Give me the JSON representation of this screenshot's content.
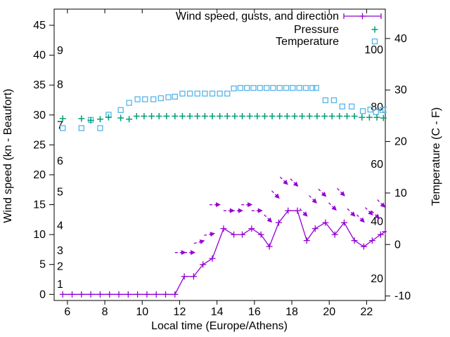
{
  "chart_data": {
    "type": "line",
    "xlabel": "Local time (Europe/Athens)",
    "ylabel_left": "Wind speed (kn - Beaufort)",
    "ylabel_right": "Temperature (C - F)",
    "x_range": [
      5.29,
      23.0
    ],
    "y_left_range_kn": [
      -1.02,
      47.7
    ],
    "y_right_range_c": [
      -10.87,
      45.7
    ],
    "x_ticks": [
      6,
      8,
      10,
      12,
      14,
      16,
      18,
      20,
      22
    ],
    "y_left_ticks_kn": [
      0,
      5,
      10,
      15,
      20,
      25,
      30,
      35,
      40,
      45
    ],
    "y_right_ticks_c": [
      -10,
      0,
      10,
      20,
      30,
      40
    ],
    "beaufort_labels": [
      [
        1,
        1.7
      ],
      [
        2,
        4.7
      ],
      [
        3,
        7.3
      ],
      [
        4,
        11.5
      ],
      [
        5,
        17.1
      ],
      [
        6,
        22.3
      ],
      [
        7,
        28.3
      ],
      [
        8,
        35.1
      ],
      [
        9,
        40.8
      ]
    ],
    "fahrenheit_labels": [
      20,
      40,
      60,
      80,
      100
    ],
    "grid": false,
    "legend_position": "top-right-inside",
    "legend": [
      {
        "label": "Wind speed, gusts, and direction",
        "marker": "errorbar-line",
        "color": "#9400d3"
      },
      {
        "label": "Pressure",
        "marker": "plus",
        "color": "#009e73"
      },
      {
        "label": "Temperature",
        "marker": "open-square",
        "color": "#56b4e9"
      }
    ],
    "series": {
      "wind_speed_kn": {
        "name": "Wind speed",
        "color": "#9400d3",
        "points": [
          [
            5.75,
            0
          ],
          [
            6.25,
            0
          ],
          [
            6.75,
            0
          ],
          [
            7.25,
            0
          ],
          [
            7.75,
            0
          ],
          [
            8.25,
            0
          ],
          [
            8.75,
            0
          ],
          [
            9.25,
            0
          ],
          [
            9.75,
            0
          ],
          [
            10.25,
            0
          ],
          [
            10.75,
            0
          ],
          [
            11.25,
            0
          ],
          [
            11.75,
            0
          ],
          [
            12.25,
            3
          ],
          [
            12.75,
            3
          ],
          [
            13.25,
            5
          ],
          [
            13.75,
            6
          ],
          [
            14.35,
            11
          ],
          [
            14.9,
            10
          ],
          [
            15.35,
            10
          ],
          [
            15.85,
            11
          ],
          [
            16.35,
            10
          ],
          [
            16.8,
            8
          ],
          [
            17.3,
            12
          ],
          [
            17.8,
            14
          ],
          [
            18.3,
            14
          ],
          [
            18.8,
            9
          ],
          [
            19.25,
            11
          ],
          [
            19.8,
            12
          ],
          [
            20.3,
            10
          ],
          [
            20.8,
            12
          ],
          [
            21.35,
            9
          ],
          [
            21.85,
            8
          ],
          [
            22.3,
            9
          ],
          [
            22.75,
            10
          ],
          [
            23.0,
            10.5
          ]
        ]
      },
      "gusts_kn_with_direction_deg": {
        "name": "Gusts and direction",
        "color": "#9400d3",
        "points": [
          [
            12.35,
            7,
            0
          ],
          [
            12.85,
            7,
            0
          ],
          [
            13.35,
            9,
            -15
          ],
          [
            13.9,
            10.2,
            -10
          ],
          [
            14.2,
            15,
            0
          ],
          [
            14.95,
            14,
            0
          ],
          [
            15.4,
            14,
            0
          ],
          [
            15.9,
            15,
            0
          ],
          [
            16.45,
            14,
            0
          ],
          [
            16.95,
            12,
            45
          ],
          [
            17.35,
            16,
            45
          ],
          [
            17.8,
            18.3,
            45
          ],
          [
            18.35,
            18,
            45
          ],
          [
            18.85,
            13,
            45
          ],
          [
            19.35,
            15.2,
            45
          ],
          [
            19.85,
            16.3,
            45
          ],
          [
            20.4,
            14,
            45
          ],
          [
            20.85,
            16.4,
            45
          ],
          [
            21.4,
            13,
            45
          ],
          [
            21.9,
            12,
            45
          ],
          [
            22.35,
            13.2,
            45
          ],
          [
            22.7,
            12.6,
            45
          ],
          [
            23.0,
            14.5,
            45
          ]
        ]
      },
      "pressure_scaled_left_axis": {
        "name": "Pressure",
        "color": "#009e73",
        "points": [
          [
            5.75,
            29.4
          ],
          [
            6.75,
            29.4
          ],
          [
            7.25,
            29.1
          ],
          [
            7.75,
            29.3
          ],
          [
            8.2,
            29.6
          ],
          [
            8.85,
            29.5
          ],
          [
            9.3,
            29.3
          ],
          [
            9.7,
            29.8
          ],
          [
            10.1,
            29.8
          ],
          [
            10.5,
            29.8
          ],
          [
            10.9,
            29.8
          ],
          [
            11.3,
            29.8
          ],
          [
            11.75,
            29.8
          ],
          [
            12.15,
            29.8
          ],
          [
            12.55,
            29.8
          ],
          [
            12.95,
            29.8
          ],
          [
            13.35,
            29.8
          ],
          [
            13.75,
            29.8
          ],
          [
            14.15,
            29.8
          ],
          [
            14.55,
            29.8
          ],
          [
            14.95,
            29.8
          ],
          [
            15.35,
            29.8
          ],
          [
            15.75,
            29.8
          ],
          [
            16.15,
            29.8
          ],
          [
            16.55,
            29.8
          ],
          [
            16.95,
            29.8
          ],
          [
            17.35,
            29.8
          ],
          [
            17.75,
            29.8
          ],
          [
            18.15,
            29.8
          ],
          [
            18.55,
            29.8
          ],
          [
            18.95,
            29.8
          ],
          [
            19.35,
            29.8
          ],
          [
            19.75,
            29.8
          ],
          [
            20.15,
            29.8
          ],
          [
            20.55,
            29.8
          ],
          [
            20.95,
            29.8
          ],
          [
            21.35,
            29.8
          ],
          [
            21.75,
            29.6
          ],
          [
            22.15,
            29.6
          ],
          [
            22.55,
            29.6
          ],
          [
            22.9,
            29.5
          ]
        ]
      },
      "temperature_c": {
        "name": "Temperature",
        "color": "#56b4e9",
        "points": [
          [
            5.75,
            22.6
          ],
          [
            6.75,
            22.6
          ],
          [
            7.25,
            24.2
          ],
          [
            7.75,
            22.6
          ],
          [
            8.2,
            25.2
          ],
          [
            8.85,
            26.1
          ],
          [
            9.3,
            27.5
          ],
          [
            9.75,
            28.2
          ],
          [
            10.15,
            28.2
          ],
          [
            10.6,
            28.2
          ],
          [
            11.0,
            28.4
          ],
          [
            11.4,
            28.6
          ],
          [
            11.75,
            28.7
          ],
          [
            12.15,
            29.3
          ],
          [
            12.55,
            29.3
          ],
          [
            12.95,
            29.3
          ],
          [
            13.35,
            29.3
          ],
          [
            13.75,
            29.3
          ],
          [
            14.15,
            29.3
          ],
          [
            14.55,
            29.3
          ],
          [
            14.9,
            30.3
          ],
          [
            15.25,
            30.4
          ],
          [
            15.6,
            30.4
          ],
          [
            15.95,
            30.4
          ],
          [
            16.3,
            30.4
          ],
          [
            16.65,
            30.4
          ],
          [
            17.0,
            30.4
          ],
          [
            17.35,
            30.4
          ],
          [
            17.7,
            30.4
          ],
          [
            18.05,
            30.4
          ],
          [
            18.4,
            30.4
          ],
          [
            18.75,
            30.4
          ],
          [
            19.1,
            30.4
          ],
          [
            19.3,
            30.4
          ],
          [
            19.8,
            28.0
          ],
          [
            20.25,
            28.0
          ],
          [
            20.7,
            26.8
          ],
          [
            21.2,
            26.8
          ],
          [
            21.8,
            25.9
          ],
          [
            22.2,
            26.2
          ],
          [
            22.5,
            25.7
          ],
          [
            22.85,
            26.1
          ],
          [
            23.0,
            26.2
          ]
        ]
      }
    },
    "colors": {
      "wind": "#9400d3",
      "pressure": "#009e73",
      "temperature": "#56b4e9",
      "axis": "#000000",
      "background": "#ffffff"
    }
  }
}
